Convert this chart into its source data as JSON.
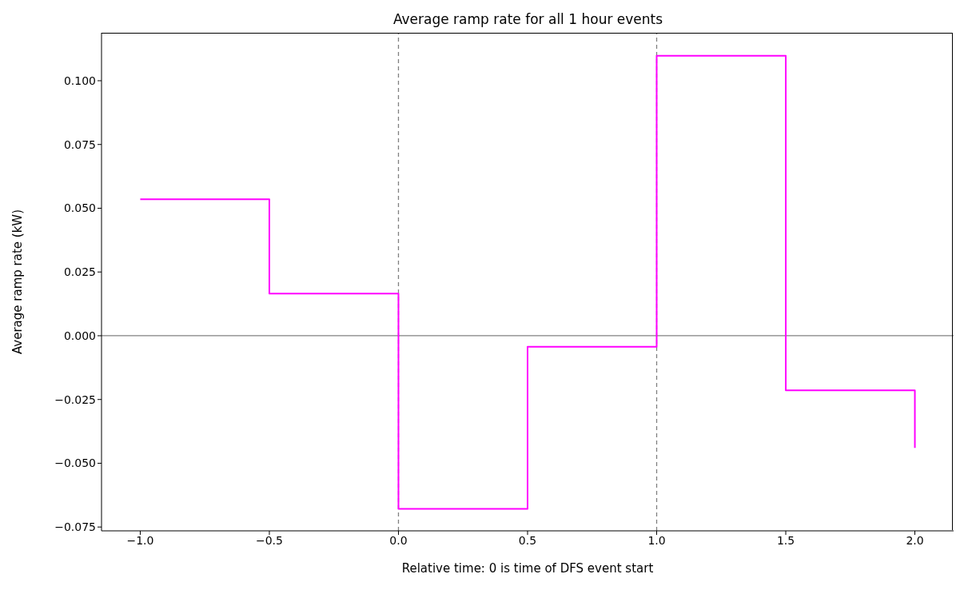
{
  "chart_data": {
    "type": "step",
    "title": "Average ramp rate for all 1 hour events",
    "xlabel": "Relative time: 0 is time of DFS event start",
    "ylabel": "Average ramp rate (kW)",
    "x": [
      -1,
      -0.5,
      0,
      0.5,
      1,
      1.5,
      2
    ],
    "series": [
      {
        "color": "#ff00ff",
        "values": [
          0.0535,
          0.0165,
          -0.0679,
          -0.0043,
          0.1098,
          -0.0214,
          -0.044
        ]
      }
    ],
    "xlim": [
      -1.15,
      2.15
    ],
    "xticks": [
      {
        "value": -1,
        "label": "−1.0"
      },
      {
        "value": -0.5,
        "label": "−0.5"
      },
      {
        "value": 0,
        "label": "0.0"
      },
      {
        "value": 0.5,
        "label": "0.5"
      },
      {
        "value": 1,
        "label": "1.0"
      },
      {
        "value": 1.5,
        "label": "1.5"
      },
      {
        "value": 2,
        "label": "2.0"
      }
    ],
    "ylim": [
      -0.0765,
      0.1188
    ],
    "yticks": [
      {
        "value": -0.075,
        "label": "−0.075"
      },
      {
        "value": -0.05,
        "label": "−0.050"
      },
      {
        "value": -0.025,
        "label": "−0.025"
      },
      {
        "value": 0,
        "label": "0.000"
      },
      {
        "value": 0.025,
        "label": "0.025"
      },
      {
        "value": 0.05,
        "label": "0.050"
      },
      {
        "value": 0.075,
        "label": "0.075"
      },
      {
        "value": 0.1,
        "label": "0.100"
      }
    ],
    "ref_lines": [
      {
        "axis": "y",
        "value": 0,
        "color": "#808080",
        "line_style": "solid"
      },
      {
        "axis": "x",
        "value": 0,
        "color": "#808080",
        "line_style": "dashed"
      },
      {
        "axis": "x",
        "value": 1,
        "color": "#808080",
        "line_style": "dashed"
      }
    ],
    "grid": false,
    "legend": false
  }
}
